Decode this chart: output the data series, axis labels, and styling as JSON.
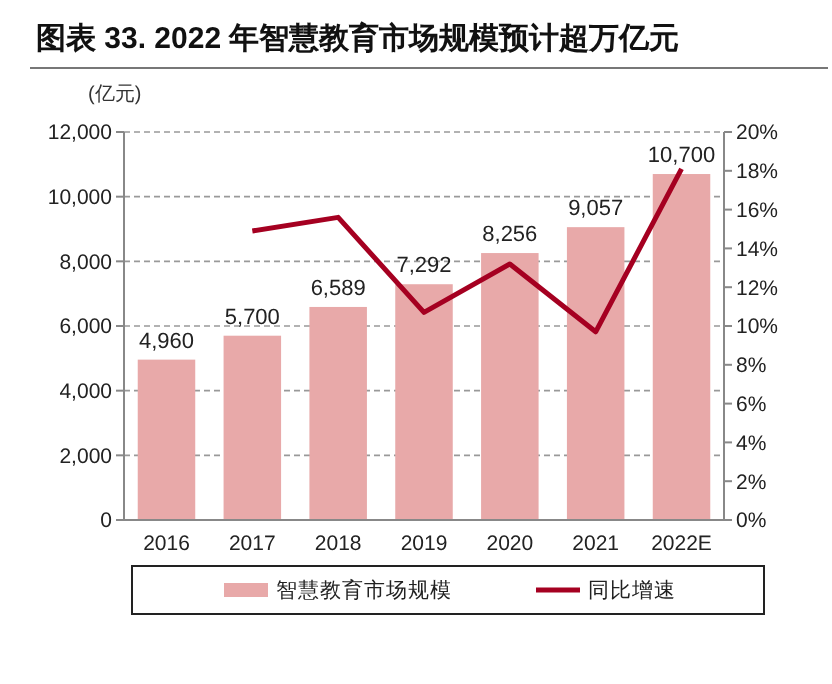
{
  "chart_data": {
    "type": "bar",
    "title": "图表 33. 2022 年智慧教育市场规模预计超万亿元",
    "ylabel": "(亿元)",
    "categories": [
      "2016",
      "2017",
      "2018",
      "2019",
      "2020",
      "2021",
      "2022E"
    ],
    "series": [
      {
        "name": "智慧教育市场规模",
        "color": "#e8a9a9",
        "values": [
          4960,
          5700,
          6589,
          7292,
          8256,
          9057,
          10700
        ]
      },
      {
        "name": "同比增速",
        "type": "line",
        "axis": "y2",
        "color": "#a50021",
        "values": [
          null,
          14.9,
          15.6,
          10.7,
          13.2,
          9.7,
          18.1
        ]
      }
    ],
    "ylim": [
      0,
      12000
    ],
    "yticks": [
      {
        "value": 0,
        "label": "0"
      },
      {
        "value": 2000,
        "label": "2,000"
      },
      {
        "value": 4000,
        "label": "4,000"
      },
      {
        "value": 6000,
        "label": "6,000"
      },
      {
        "value": 8000,
        "label": "8,000"
      },
      {
        "value": 10000,
        "label": "10,000"
      },
      {
        "value": 12000,
        "label": "12,000"
      }
    ],
    "y2lim": [
      0,
      20
    ],
    "y2ticks": [
      {
        "value": 0,
        "label": "0%"
      },
      {
        "value": 2,
        "label": "2%"
      },
      {
        "value": 4,
        "label": "4%"
      },
      {
        "value": 6,
        "label": "6%"
      },
      {
        "value": 8,
        "label": "8%"
      },
      {
        "value": 10,
        "label": "10%"
      },
      {
        "value": 12,
        "label": "12%"
      },
      {
        "value": 14,
        "label": "14%"
      },
      {
        "value": 16,
        "label": "16%"
      },
      {
        "value": 18,
        "label": "18%"
      },
      {
        "value": 20,
        "label": "20%"
      }
    ],
    "value_labels": [
      "4,960",
      "5,700",
      "6,589",
      "7,292",
      "8,256",
      "9,057",
      "10,700"
    ],
    "grid": "y",
    "legend": "bottom",
    "marker": "none",
    "line_style": "solid"
  }
}
